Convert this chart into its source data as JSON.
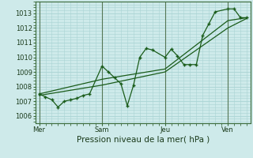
{
  "bg_color": "#ceeaea",
  "grid_color": "#aad4d4",
  "line_color": "#1a5c1a",
  "xlabel": "Pression niveau de la mer( hPa )",
  "ylim": [
    1005.5,
    1013.8
  ],
  "yticks": [
    1006,
    1007,
    1008,
    1009,
    1010,
    1011,
    1012,
    1013
  ],
  "day_labels": [
    "Mer",
    "Sam",
    "Jeu",
    "Ven"
  ],
  "day_positions": [
    0.0,
    0.333,
    0.667,
    1.0
  ],
  "vline_positions": [
    0.0,
    0.333,
    0.667,
    1.0
  ],
  "series1_x": [
    0.0,
    0.033,
    0.067,
    0.1,
    0.133,
    0.167,
    0.2,
    0.233,
    0.267,
    0.333,
    0.367,
    0.4,
    0.433,
    0.467,
    0.5,
    0.533,
    0.567,
    0.6,
    0.667,
    0.7,
    0.733,
    0.767,
    0.8,
    0.833,
    0.867,
    0.9,
    0.933,
    1.0,
    1.033,
    1.067,
    1.1
  ],
  "series1_y": [
    1007.5,
    1007.3,
    1007.1,
    1006.6,
    1007.0,
    1007.1,
    1007.2,
    1007.4,
    1007.5,
    1009.4,
    1009.0,
    1008.6,
    1008.2,
    1006.7,
    1008.1,
    1010.0,
    1010.6,
    1010.5,
    1010.0,
    1010.55,
    1010.1,
    1009.5,
    1009.5,
    1009.5,
    1011.5,
    1012.3,
    1013.1,
    1013.3,
    1013.3,
    1012.7,
    1012.7
  ],
  "series2_x": [
    0.0,
    0.333,
    0.667,
    1.0,
    1.1
  ],
  "series2_y": [
    1007.5,
    1008.5,
    1009.2,
    1012.5,
    1012.7
  ],
  "series3_x": [
    0.0,
    0.333,
    0.667,
    1.0,
    1.1
  ],
  "series3_y": [
    1007.4,
    1008.1,
    1009.0,
    1012.0,
    1012.65
  ],
  "xlim": [
    -0.02,
    1.12
  ]
}
